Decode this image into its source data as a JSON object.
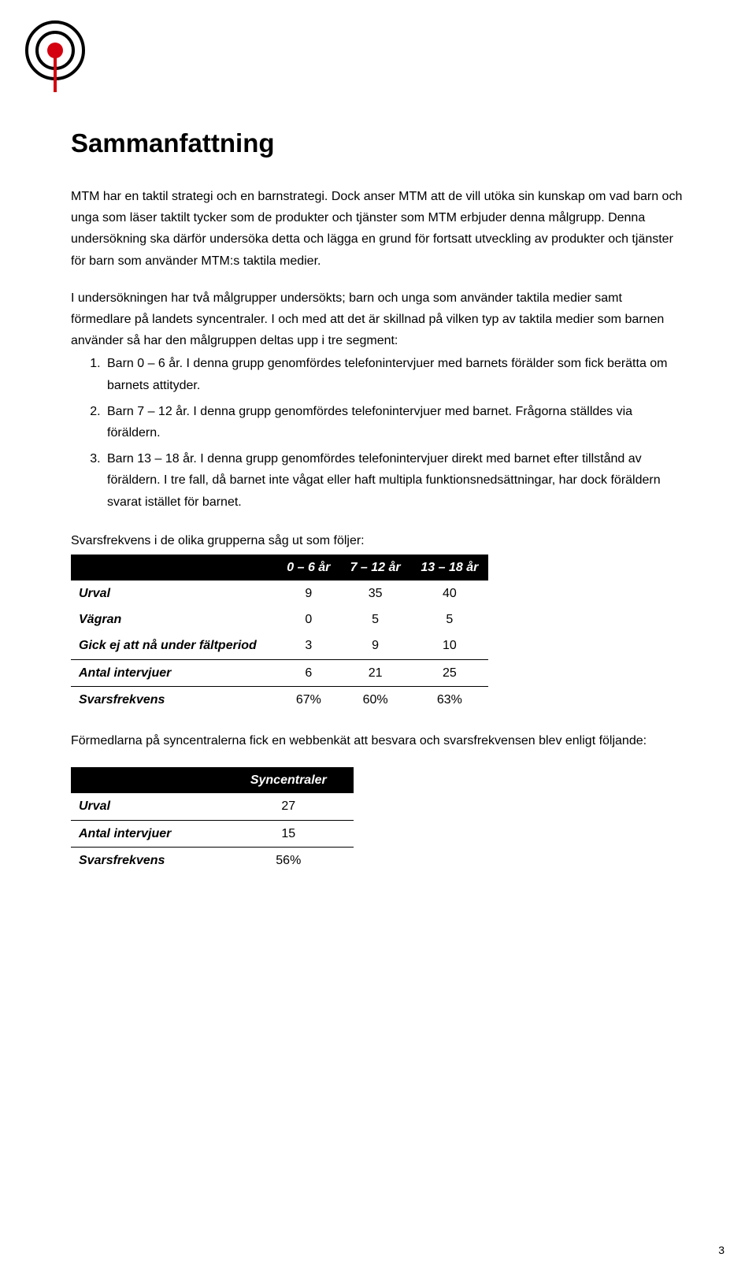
{
  "logo": {
    "outer_stroke": "#000000",
    "dot_fill": "#d4000f",
    "bg": "#ffffff"
  },
  "heading": "Sammanfattning",
  "para1": "MTM har en taktil strategi och en barnstrategi. Dock anser MTM att de vill utöka sin kunskap om vad barn och unga som läser taktilt tycker som de produkter och tjänster som MTM erbjuder denna målgrupp. Denna undersökning ska därför undersöka detta och lägga en grund för fortsatt utveckling av produkter och tjänster för barn som använder MTM:s  taktila medier.",
  "para2": "I undersökningen har två målgrupper undersökts; barn och unga som använder taktila medier samt förmedlare på landets syncentraler. I och med att det är skillnad på vilken typ av taktila medier som barnen använder så har den målgruppen deltas upp i tre segment:",
  "list": [
    "Barn 0 – 6 år. I denna grupp genomfördes telefonintervjuer med barnets förälder som fick berätta om barnets attityder.",
    "Barn 7 – 12 år. I denna grupp genomfördes telefonintervjuer med barnet. Frågorna ställdes via föräldern.",
    "Barn 13 – 18 år. I denna grupp genomfördes telefonintervjuer direkt med barnet efter tillstånd av föräldern. I tre fall, då barnet inte vågat eller haft multipla funktionsnedsättningar, har dock föräldern svarat istället för barnet."
  ],
  "table1": {
    "intro": "Svarsfrekvens i de olika grupperna såg ut som följer:",
    "headers": [
      "",
      "0 – 6 år",
      "7 – 12 år",
      "13 – 18 år"
    ],
    "rows": [
      {
        "cells": [
          "Urval",
          "9",
          "35",
          "40"
        ],
        "sep": false
      },
      {
        "cells": [
          "Vägran",
          "0",
          "5",
          "5"
        ],
        "sep": false
      },
      {
        "cells": [
          "Gick ej att nå under fältperiod",
          "3",
          "9",
          "10"
        ],
        "sep": false
      },
      {
        "cells": [
          "Antal intervjuer",
          "6",
          "21",
          "25"
        ],
        "sep": true
      },
      {
        "cells": [
          "Svarsfrekvens",
          "67%",
          "60%",
          "63%"
        ],
        "sep": true
      }
    ]
  },
  "para3": "Förmedlarna på syncentralerna fick en webbenkät att besvara och svarsfrekvensen blev enligt följande:",
  "table2": {
    "headers": [
      "",
      "Syncentraler"
    ],
    "rows": [
      {
        "cells": [
          "Urval",
          "27"
        ],
        "sep": false
      },
      {
        "cells": [
          "Antal intervjuer",
          "15"
        ],
        "sep": true
      },
      {
        "cells": [
          "Svarsfrekvens",
          "56%"
        ],
        "sep": true
      }
    ]
  },
  "page_number": "3"
}
